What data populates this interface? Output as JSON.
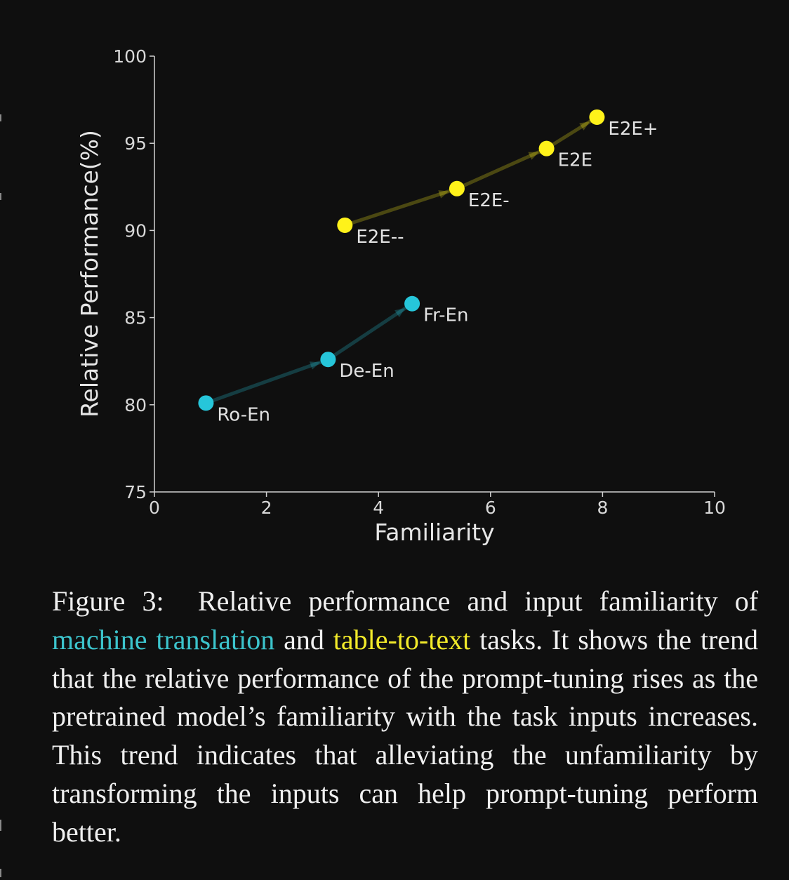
{
  "chart_data": {
    "type": "scatter",
    "xlabel": "Familiarity",
    "ylabel": "Relative Performance(%)",
    "xlim": [
      0,
      10
    ],
    "ylim": [
      75,
      100
    ],
    "xticks": [
      "0",
      "2",
      "4",
      "6",
      "8",
      "10"
    ],
    "yticks": [
      "75",
      "80",
      "85",
      "90",
      "95",
      "100"
    ],
    "grid": false,
    "series": [
      {
        "color": "#26c6da",
        "points": [
          {
            "label": "Ro-En",
            "x": 0.92,
            "y": 80.1
          },
          {
            "label": "De-En",
            "x": 3.1,
            "y": 82.6
          },
          {
            "label": "Fr-En",
            "x": 4.6,
            "y": 85.8
          }
        ]
      },
      {
        "color": "#fff21a",
        "points": [
          {
            "label": "E2E--",
            "x": 3.4,
            "y": 90.3
          },
          {
            "label": "E2E-",
            "x": 5.4,
            "y": 92.4
          },
          {
            "label": "E2E",
            "x": 7.0,
            "y": 94.7
          },
          {
            "label": "E2E+",
            "x": 7.9,
            "y": 96.5
          }
        ]
      }
    ]
  },
  "caption": {
    "figure_label": "Figure 3:",
    "part1": "Relative performance and input familiarity of",
    "highlight1": "machine translation",
    "part2": "and",
    "highlight2": "table-to-text",
    "part3": "tasks. It shows the trend that the relative performance of the prompt-tuning rises as the pretrained model’s familiarity with the task inputs increases. This trend indicates that alleviating the unfamiliarity by transforming the inputs can help prompt-tuning perform better.",
    "highlight1_color": "#3cc4cc",
    "highlight2_color": "#f2ea2a"
  }
}
